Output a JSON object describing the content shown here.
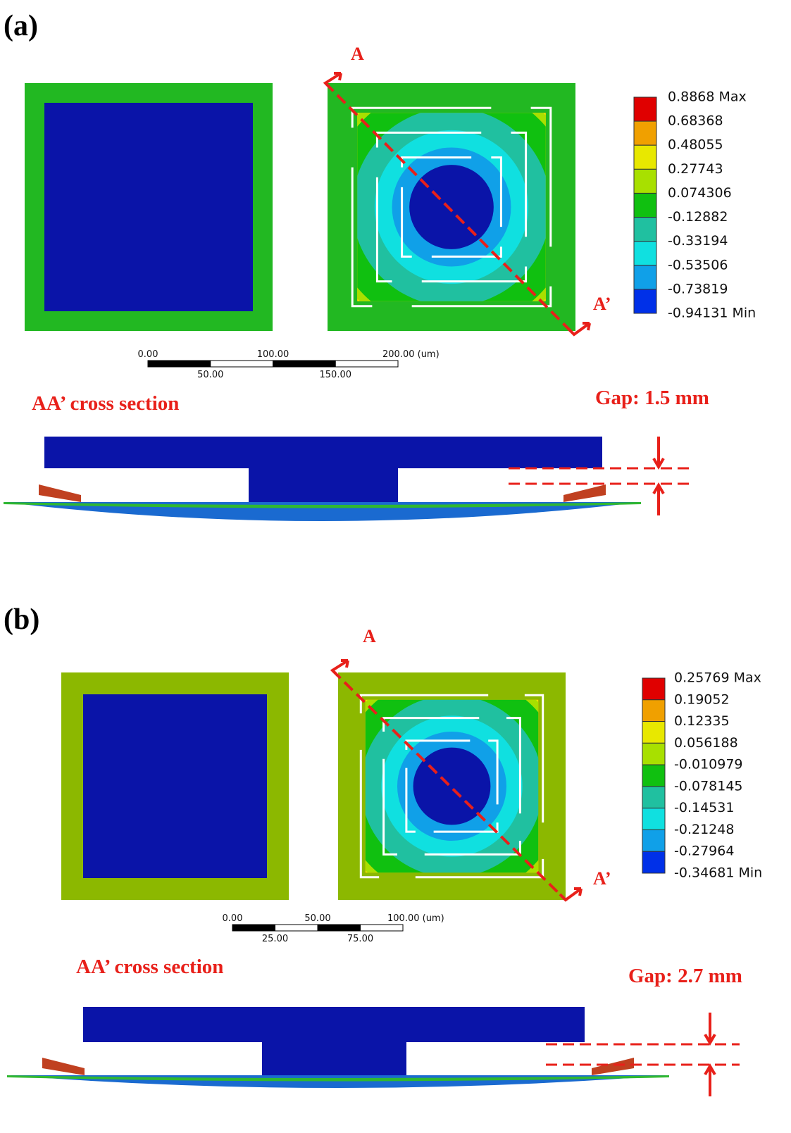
{
  "panels": [
    {
      "label": "(a)",
      "section_start": "A",
      "section_end": "A’",
      "legend": [
        "0.8868 Max",
        "0.68368",
        "0.48055",
        "0.27743",
        "0.074306",
        "-0.12882",
        "-0.33194",
        "-0.53506",
        "-0.73819",
        "-0.94131 Min"
      ],
      "scale_top": [
        "0.00",
        "100.00",
        "200.00 (um)"
      ],
      "scale_bottom": [
        "50.00",
        "150.00"
      ],
      "cross_section_label": "AA’ cross section",
      "gap_label": "Gap: 1.5 mm"
    },
    {
      "label": "(b)",
      "section_start": "A",
      "section_end": "A’",
      "legend": [
        "0.25769 Max",
        "0.19052",
        "0.12335",
        "0.056188",
        "-0.010979",
        "-0.078145",
        "-0.14531",
        "-0.21248",
        "-0.27964",
        "-0.34681 Min"
      ],
      "scale_top": [
        "0.00",
        "50.00",
        "100.00 (um)"
      ],
      "scale_bottom": [
        "25.00",
        "75.00"
      ],
      "cross_section_label": "AA’ cross section",
      "gap_label": "Gap: 2.7 mm"
    }
  ]
}
